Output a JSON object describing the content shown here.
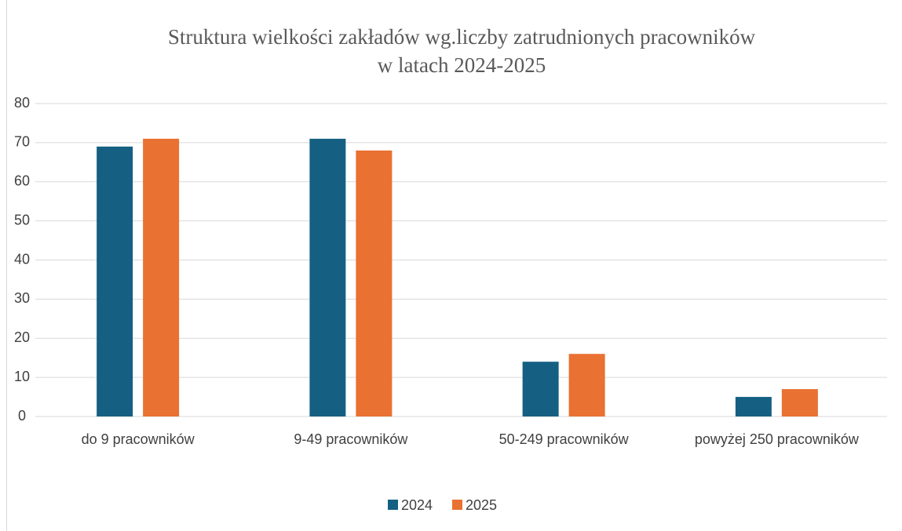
{
  "chart_data": {
    "type": "bar",
    "title": [
      "Struktura wielkości zakładów wg.liczby zatrudnionych pracowników",
      "w latach 2024-2025"
    ],
    "categories": [
      "do 9 pracowników",
      "9-49 pracowników",
      "50-249 pracowników",
      "powyżej 250 pracowników"
    ],
    "series": [
      {
        "name": "2024",
        "color": "#156082",
        "values": [
          69,
          71,
          14,
          5
        ]
      },
      {
        "name": "2025",
        "color": "#e97132",
        "values": [
          71,
          68,
          16,
          7
        ]
      }
    ],
    "ylim": [
      0,
      80
    ],
    "yticks": [
      0,
      10,
      20,
      30,
      40,
      50,
      60,
      70,
      80
    ],
    "grid": true,
    "legend": "bottom"
  }
}
